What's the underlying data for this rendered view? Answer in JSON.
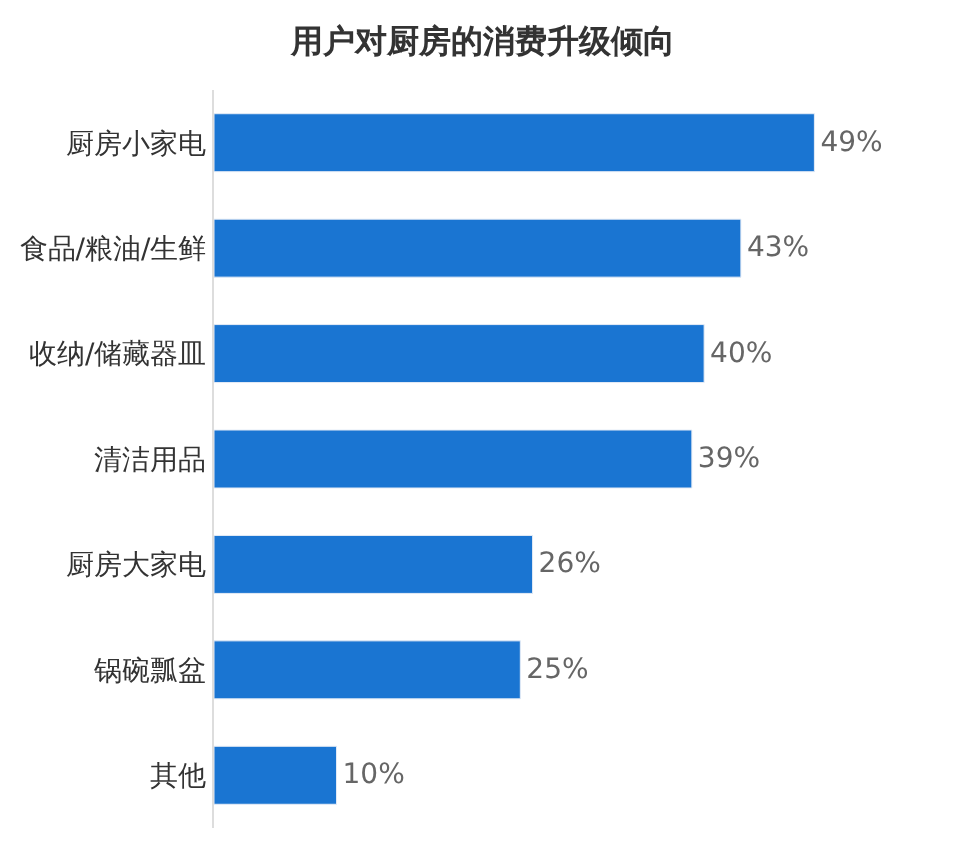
{
  "chart_data": {
    "type": "bar",
    "orientation": "horizontal",
    "title": "用户对厨房的消费升级倾向",
    "categories": [
      "厨房小家电",
      "食品/粮油/生鲜",
      "收纳/储藏器皿",
      "清洁用品",
      "厨房大家电",
      "锅碗瓢盆",
      "其他"
    ],
    "values": [
      49,
      43,
      40,
      39,
      26,
      25,
      10
    ],
    "value_labels": [
      "49%",
      "43%",
      "40%",
      "39%",
      "26%",
      "25%",
      "10%"
    ],
    "color": "#1a75d2"
  }
}
